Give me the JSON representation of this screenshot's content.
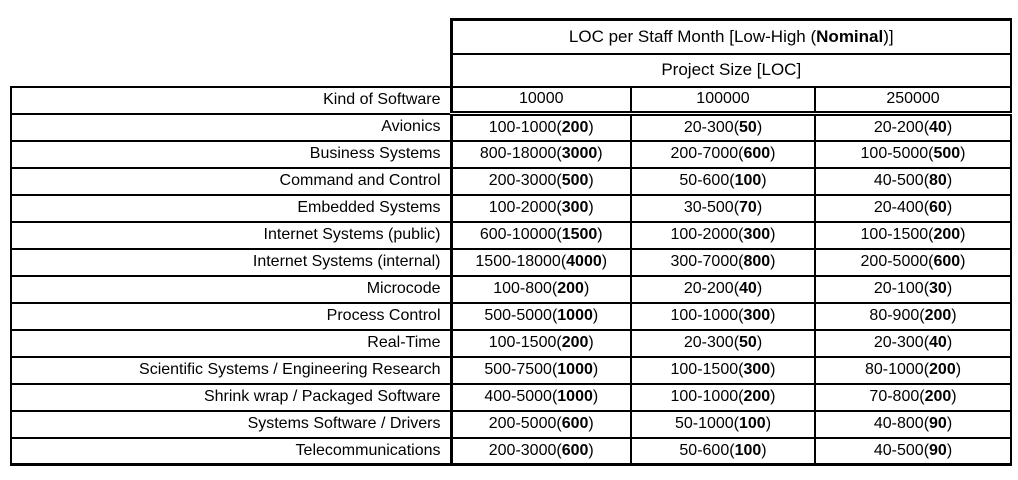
{
  "page": {
    "background": "#ffffff",
    "border_color": "#000000",
    "text_color": "#000000"
  },
  "table": {
    "title": "LOC per Staff Month [Low-High (Nominal)]",
    "subtitle": "Project Size [LOC]",
    "kind_header": "Kind of Software",
    "size_headers": [
      "10000",
      "100000",
      "250000"
    ],
    "rows": [
      {
        "kind": "Avionics",
        "cells": [
          "100-1000(200)",
          "20-300(50)",
          "20-200(40)"
        ]
      },
      {
        "kind": "Business Systems",
        "cells": [
          "800-18000(3000)",
          "200-7000(600)",
          "100-5000(500)"
        ]
      },
      {
        "kind": "Command and Control",
        "cells": [
          "200-3000(500)",
          "50-600(100)",
          "40-500(80)"
        ]
      },
      {
        "kind": "Embedded Systems",
        "cells": [
          "100-2000(300)",
          "30-500(70)",
          "20-400(60)"
        ]
      },
      {
        "kind": "Internet Systems (public)",
        "cells": [
          "600-10000(1500)",
          "100-2000(300)",
          "100-1500(200)"
        ]
      },
      {
        "kind": "Internet Systems (internal)",
        "cells": [
          "1500-18000(4000)",
          "300-7000(800)",
          "200-5000(600)"
        ]
      },
      {
        "kind": "Microcode",
        "cells": [
          "100-800(200)",
          "20-200(40)",
          "20-100(30)"
        ]
      },
      {
        "kind": "Process Control",
        "cells": [
          "500-5000(1000)",
          "100-1000(300)",
          "80-900(200)"
        ]
      },
      {
        "kind": "Real-Time",
        "cells": [
          "100-1500(200)",
          "20-300(50)",
          "20-300(40)"
        ]
      },
      {
        "kind": "Scientific Systems / Engineering Research",
        "cells": [
          "500-7500(1000)",
          "100-1500(300)",
          "80-1000(200)"
        ]
      },
      {
        "kind": "Shrink wrap / Packaged Software",
        "cells": [
          "400-5000(1000)",
          "100-1000(200)",
          "70-800(200)"
        ]
      },
      {
        "kind": "Systems Software / Drivers",
        "cells": [
          "200-5000(600)",
          "50-1000(100)",
          "40-800(90)"
        ]
      },
      {
        "kind": "Telecommunications",
        "cells": [
          "200-3000(600)",
          "50-600(100)",
          "40-500(90)"
        ]
      }
    ]
  },
  "chart_data": {
    "type": "table",
    "title": "LOC per Staff Month [Low-High (Nominal)]",
    "column_group_label": "Project Size [LOC]",
    "row_header": "Kind of Software",
    "columns": [
      10000,
      100000,
      250000
    ],
    "value_format": "low-high(nominal)",
    "rows": [
      {
        "kind": "Avionics",
        "values": [
          [
            100,
            1000,
            200
          ],
          [
            20,
            300,
            50
          ],
          [
            20,
            200,
            40
          ]
        ]
      },
      {
        "kind": "Business Systems",
        "values": [
          [
            800,
            18000,
            3000
          ],
          [
            200,
            7000,
            600
          ],
          [
            100,
            5000,
            500
          ]
        ]
      },
      {
        "kind": "Command and Control",
        "values": [
          [
            200,
            3000,
            500
          ],
          [
            50,
            600,
            100
          ],
          [
            40,
            500,
            80
          ]
        ]
      },
      {
        "kind": "Embedded Systems",
        "values": [
          [
            100,
            2000,
            300
          ],
          [
            30,
            500,
            70
          ],
          [
            20,
            400,
            60
          ]
        ]
      },
      {
        "kind": "Internet Systems (public)",
        "values": [
          [
            600,
            10000,
            1500
          ],
          [
            100,
            2000,
            300
          ],
          [
            100,
            1500,
            200
          ]
        ]
      },
      {
        "kind": "Internet Systems (internal)",
        "values": [
          [
            1500,
            18000,
            4000
          ],
          [
            300,
            7000,
            800
          ],
          [
            200,
            5000,
            600
          ]
        ]
      },
      {
        "kind": "Microcode",
        "values": [
          [
            100,
            800,
            200
          ],
          [
            20,
            200,
            40
          ],
          [
            20,
            100,
            30
          ]
        ]
      },
      {
        "kind": "Process Control",
        "values": [
          [
            500,
            5000,
            1000
          ],
          [
            100,
            1000,
            300
          ],
          [
            80,
            900,
            200
          ]
        ]
      },
      {
        "kind": "Real-Time",
        "values": [
          [
            100,
            1500,
            200
          ],
          [
            20,
            300,
            50
          ],
          [
            20,
            300,
            40
          ]
        ]
      },
      {
        "kind": "Scientific Systems / Engineering Research",
        "values": [
          [
            500,
            7500,
            1000
          ],
          [
            100,
            1500,
            300
          ],
          [
            80,
            1000,
            200
          ]
        ]
      },
      {
        "kind": "Shrink wrap / Packaged Software",
        "values": [
          [
            400,
            5000,
            1000
          ],
          [
            100,
            1000,
            200
          ],
          [
            70,
            800,
            200
          ]
        ]
      },
      {
        "kind": "Systems Software / Drivers",
        "values": [
          [
            200,
            5000,
            600
          ],
          [
            50,
            1000,
            100
          ],
          [
            40,
            800,
            90
          ]
        ]
      },
      {
        "kind": "Telecommunications",
        "values": [
          [
            200,
            3000,
            600
          ],
          [
            50,
            600,
            100
          ],
          [
            40,
            500,
            90
          ]
        ]
      }
    ]
  }
}
